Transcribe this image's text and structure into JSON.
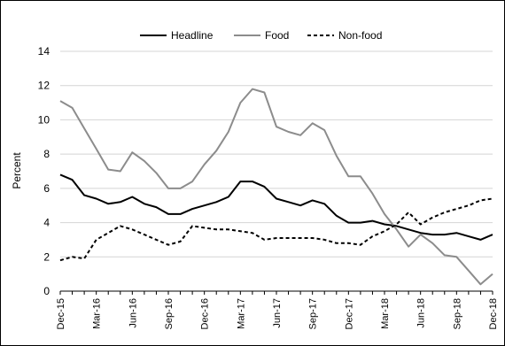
{
  "chart_data": {
    "type": "line",
    "ylabel": "Percent",
    "ylim": [
      0,
      14
    ],
    "yticks": [
      0,
      2,
      4,
      6,
      8,
      10,
      12,
      14
    ],
    "grid": "horizontal",
    "legend_position": "top",
    "x_tick_labels": [
      "Dec-15",
      "Mar-16",
      "Jun-16",
      "Sep-16",
      "Dec-16",
      "Mar-17",
      "Jun-17",
      "Sep-17",
      "Dec-17",
      "Mar-18",
      "Jun-18",
      "Sep-18",
      "Dec-18"
    ],
    "x": [
      "Dec-15",
      "Jan-16",
      "Feb-16",
      "Mar-16",
      "Apr-16",
      "May-16",
      "Jun-16",
      "Jul-16",
      "Aug-16",
      "Sep-16",
      "Oct-16",
      "Nov-16",
      "Dec-16",
      "Jan-17",
      "Feb-17",
      "Mar-17",
      "Apr-17",
      "May-17",
      "Jun-17",
      "Jul-17",
      "Aug-17",
      "Sep-17",
      "Oct-17",
      "Nov-17",
      "Dec-17",
      "Jan-18",
      "Feb-18",
      "Mar-18",
      "Apr-18",
      "May-18",
      "Jun-18",
      "Jul-18",
      "Aug-18",
      "Sep-18",
      "Oct-18",
      "Nov-18",
      "Dec-18"
    ],
    "series": [
      {
        "name": "Headline",
        "color": "#000000",
        "dash": "solid",
        "values": [
          6.8,
          6.5,
          5.6,
          5.4,
          5.1,
          5.2,
          5.5,
          5.1,
          4.9,
          4.5,
          4.5,
          4.8,
          5.0,
          5.2,
          5.5,
          6.4,
          6.4,
          6.1,
          5.4,
          5.2,
          5.0,
          5.3,
          5.1,
          4.4,
          4.0,
          4.0,
          4.1,
          3.9,
          3.8,
          3.6,
          3.4,
          3.3,
          3.3,
          3.4,
          3.2,
          3.0,
          3.3
        ]
      },
      {
        "name": "Food",
        "color": "#8c8c8c",
        "dash": "solid",
        "values": [
          11.1,
          10.7,
          9.5,
          8.3,
          7.1,
          7.0,
          8.1,
          7.6,
          6.9,
          6.0,
          6.0,
          6.4,
          7.4,
          8.2,
          9.3,
          11.0,
          11.8,
          11.6,
          9.6,
          9.3,
          9.1,
          9.8,
          9.4,
          7.9,
          6.7,
          6.7,
          5.7,
          4.5,
          3.6,
          2.6,
          3.3,
          2.8,
          2.1,
          2.0,
          1.2,
          0.4,
          1.0
        ]
      },
      {
        "name": "Non-food",
        "color": "#000000",
        "dash": "dashed",
        "values": [
          1.8,
          2.0,
          1.9,
          3.0,
          3.4,
          3.8,
          3.6,
          3.3,
          3.0,
          2.7,
          2.9,
          3.8,
          3.7,
          3.6,
          3.6,
          3.5,
          3.4,
          3.0,
          3.1,
          3.1,
          3.1,
          3.1,
          3.0,
          2.8,
          2.8,
          2.7,
          3.2,
          3.5,
          3.9,
          4.6,
          3.9,
          4.3,
          4.6,
          4.8,
          5.0,
          5.3,
          5.4
        ]
      }
    ]
  }
}
